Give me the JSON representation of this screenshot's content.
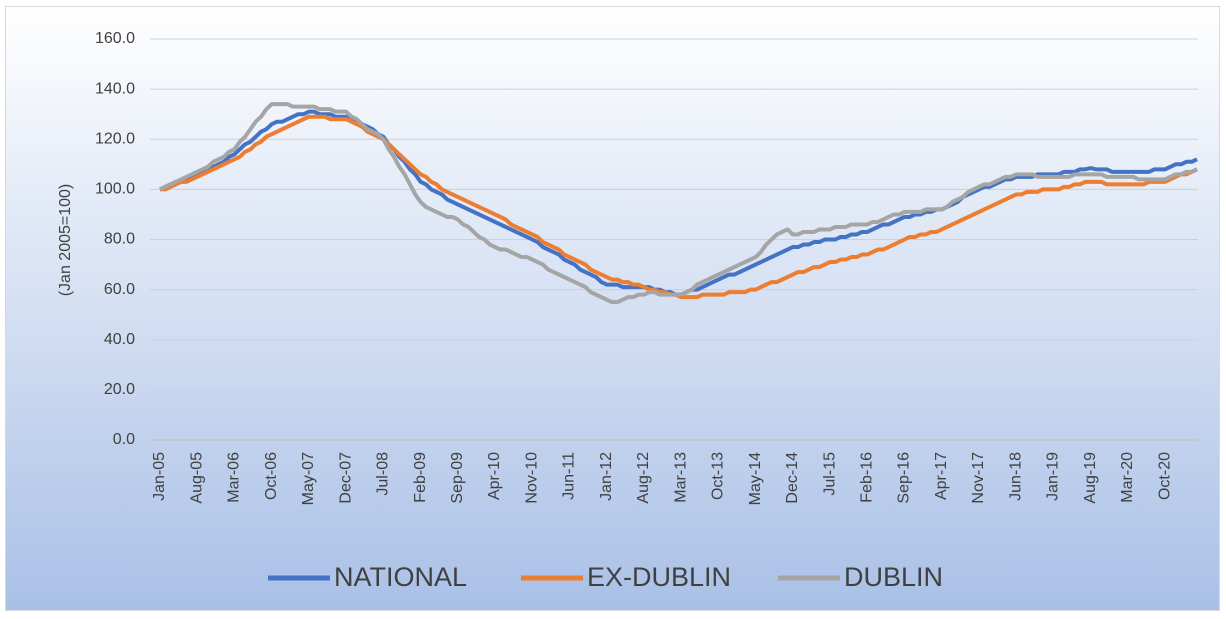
{
  "chart_data": {
    "type": "line",
    "y_label": "(Jan 2005=100)",
    "categories": [
      "Jan-05",
      null,
      null,
      null,
      null,
      null,
      null,
      "Aug-05",
      null,
      null,
      null,
      null,
      null,
      null,
      "Mar-06",
      null,
      null,
      null,
      null,
      null,
      null,
      "Oct-06",
      null,
      null,
      null,
      null,
      null,
      null,
      "May-07",
      null,
      null,
      null,
      null,
      null,
      null,
      "Dec-07",
      null,
      null,
      null,
      null,
      null,
      null,
      "Jul-08",
      null,
      null,
      null,
      null,
      null,
      null,
      "Feb-09",
      null,
      null,
      null,
      null,
      null,
      null,
      "Sep-09",
      null,
      null,
      null,
      null,
      null,
      null,
      "Apr-10",
      null,
      null,
      null,
      null,
      null,
      null,
      "Nov-10",
      null,
      null,
      null,
      null,
      null,
      null,
      "Jun-11",
      null,
      null,
      null,
      null,
      null,
      null,
      "Jan-12",
      null,
      null,
      null,
      null,
      null,
      null,
      "Aug-12",
      null,
      null,
      null,
      null,
      null,
      null,
      "Mar-13",
      null,
      null,
      null,
      null,
      null,
      null,
      "Oct-13",
      null,
      null,
      null,
      null,
      null,
      null,
      "May-14",
      null,
      null,
      null,
      null,
      null,
      null,
      "Dec-14",
      null,
      null,
      null,
      null,
      null,
      null,
      "Jul-15",
      null,
      null,
      null,
      null,
      null,
      null,
      "Feb-16",
      null,
      null,
      null,
      null,
      null,
      null,
      "Sep-16",
      null,
      null,
      null,
      null,
      null,
      null,
      "Apr-17",
      null,
      null,
      null,
      null,
      null,
      null,
      "Nov-17",
      null,
      null,
      null,
      null,
      null,
      null,
      "Jun-18",
      null,
      null,
      null,
      null,
      null,
      null,
      "Jan-19",
      null,
      null,
      null,
      null,
      null,
      null,
      "Aug-19",
      null,
      null,
      null,
      null,
      null,
      null,
      "Mar-20",
      null,
      null,
      null,
      null,
      null,
      null,
      "Oct-20",
      null,
      null,
      null,
      null,
      null,
      null
    ],
    "series": [
      {
        "name": "NATIONAL",
        "color": "#4472c4",
        "values": [
          100,
          101,
          102,
          103,
          103,
          104,
          105,
          106,
          107,
          108,
          109,
          110,
          111,
          113,
          114,
          116,
          118,
          119,
          121,
          123,
          124,
          126,
          127,
          127,
          128,
          129,
          130,
          130,
          131,
          131,
          130,
          130,
          130,
          129,
          129,
          129,
          128,
          127,
          126,
          125,
          124,
          122,
          121,
          118,
          116,
          113,
          111,
          108,
          106,
          103,
          102,
          100,
          99,
          98,
          96,
          95,
          94,
          93,
          92,
          91,
          90,
          89,
          88,
          87,
          86,
          85,
          84,
          83,
          82,
          81,
          80,
          79,
          77,
          76,
          75,
          74,
          72,
          71,
          70,
          68,
          67,
          66,
          65,
          63,
          62,
          62,
          62,
          61,
          61,
          61,
          61,
          61,
          61,
          60,
          60,
          59,
          59,
          58,
          58,
          59,
          60,
          60,
          61,
          62,
          63,
          64,
          65,
          66,
          66,
          67,
          68,
          69,
          70,
          71,
          72,
          73,
          74,
          75,
          76,
          77,
          77,
          78,
          78,
          79,
          79,
          80,
          80,
          80,
          81,
          81,
          82,
          82,
          83,
          83,
          84,
          85,
          86,
          86,
          87,
          88,
          89,
          89,
          90,
          90,
          91,
          91,
          92,
          92,
          93,
          94,
          95,
          97,
          98,
          99,
          100,
          101,
          101,
          102,
          103,
          104,
          104,
          105,
          105,
          105,
          105,
          106,
          106,
          106,
          106,
          106,
          107,
          107,
          107,
          108,
          108,
          108.5,
          108,
          108,
          108,
          107,
          107,
          107,
          107,
          107,
          107,
          107,
          107,
          108,
          108,
          108,
          109,
          110,
          110,
          111,
          111,
          112
        ]
      },
      {
        "name": "EX-DUBLIN",
        "color": "#ed7d31",
        "values": [
          100,
          100,
          101,
          102,
          103,
          103,
          104,
          105,
          106,
          107,
          108,
          109,
          110,
          111,
          112,
          113,
          115,
          116,
          118,
          119,
          121,
          122,
          123,
          124,
          125,
          126,
          127,
          128,
          129,
          129,
          129,
          129,
          128,
          128,
          128,
          128,
          127,
          126,
          125,
          123,
          122,
          121,
          120,
          118,
          116,
          114,
          112,
          110,
          108,
          106,
          105,
          103,
          102,
          100,
          99,
          98,
          97,
          96,
          95,
          94,
          93,
          92,
          91,
          90,
          89,
          88,
          86,
          85,
          84,
          83,
          82,
          81,
          79,
          78,
          77,
          76,
          74,
          73,
          72,
          71,
          70,
          68,
          67,
          66,
          65,
          64,
          64,
          63,
          63,
          62,
          62,
          61,
          60,
          60,
          59,
          59,
          58,
          58,
          57,
          57,
          57,
          57,
          58,
          58,
          58,
          58,
          58,
          59,
          59,
          59,
          59,
          60,
          60,
          61,
          62,
          63,
          63,
          64,
          65,
          66,
          67,
          67,
          68,
          69,
          69,
          70,
          71,
          71,
          72,
          72,
          73,
          73,
          74,
          74,
          75,
          76,
          76,
          77,
          78,
          79,
          80,
          81,
          81,
          82,
          82,
          83,
          83,
          84,
          85,
          86,
          87,
          88,
          89,
          90,
          91,
          92,
          93,
          94,
          95,
          96,
          97,
          98,
          98,
          99,
          99,
          99,
          100,
          100,
          100,
          100,
          101,
          101,
          102,
          102,
          103,
          103,
          103,
          103,
          102,
          102,
          102,
          102,
          102,
          102,
          102,
          102,
          103,
          103,
          103,
          103,
          104,
          105,
          106,
          106,
          107,
          108
        ]
      },
      {
        "name": "DUBLIN",
        "color": "#a5a5a5",
        "values": [
          100,
          101,
          102,
          103,
          104,
          105,
          106,
          107,
          108,
          109,
          111,
          112,
          113,
          115,
          116,
          119,
          121,
          124,
          127,
          129,
          132,
          134,
          134,
          134,
          134,
          133,
          133,
          133,
          133,
          133,
          132,
          132,
          132,
          131,
          131,
          131,
          129,
          128,
          126,
          124,
          123,
          122,
          120,
          116,
          113,
          109,
          106,
          102,
          98,
          95,
          93,
          92,
          91,
          90,
          89,
          89,
          88,
          86,
          85,
          83,
          81,
          80,
          78,
          77,
          76,
          76,
          75,
          74,
          73,
          73,
          72,
          71,
          70,
          68,
          67,
          66,
          65,
          64,
          63,
          62,
          61,
          59,
          58,
          57,
          56,
          55,
          55,
          56,
          57,
          57,
          58,
          58,
          59,
          59,
          58,
          58,
          58,
          58,
          58,
          59,
          60,
          62,
          63,
          64,
          65,
          66,
          67,
          68,
          69,
          70,
          71,
          72,
          73,
          75,
          78,
          80,
          82,
          83,
          84,
          82,
          82,
          83,
          83,
          83,
          84,
          84,
          84,
          85,
          85,
          85,
          86,
          86,
          86,
          86,
          87,
          87,
          88,
          89,
          90,
          90,
          91,
          91,
          91,
          91,
          92,
          92,
          92,
          92,
          93,
          95,
          96,
          97,
          99,
          100,
          101,
          102,
          102,
          103,
          104,
          105,
          105,
          106,
          106,
          106,
          106,
          105,
          105,
          105,
          105,
          105,
          105,
          105,
          106,
          106,
          106,
          106,
          106,
          106,
          105,
          105,
          105,
          105,
          105,
          105,
          104,
          104,
          104,
          104,
          104,
          104,
          105,
          106,
          106,
          107,
          107,
          108
        ]
      }
    ],
    "ylim": [
      0,
      160
    ],
    "yticks": [
      {
        "value": 0,
        "label": "0.0"
      },
      {
        "value": 20,
        "label": "20.0"
      },
      {
        "value": 40,
        "label": "40.0"
      },
      {
        "value": 60,
        "label": "60.0"
      },
      {
        "value": 80,
        "label": "80.0"
      },
      {
        "value": 100,
        "label": "100.0"
      },
      {
        "value": 120,
        "label": "120.0"
      },
      {
        "value": 140,
        "label": "140.0"
      },
      {
        "value": 160,
        "label": "160.0"
      }
    ],
    "grid": true,
    "legend": "bottom"
  }
}
